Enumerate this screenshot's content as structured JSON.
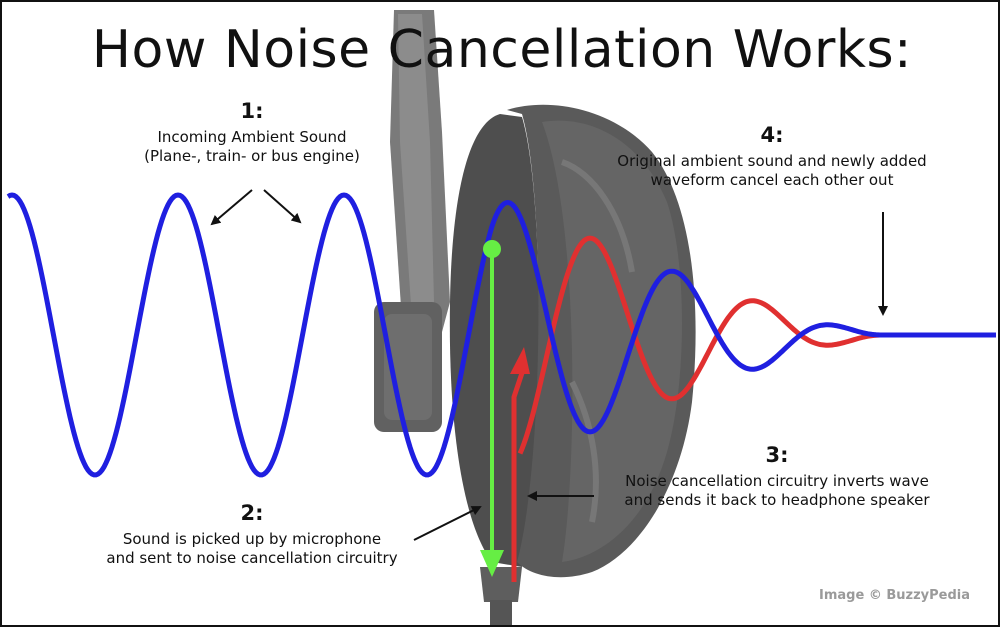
{
  "title": "How Noise Cancellation Works:",
  "steps": [
    {
      "number": "1:",
      "text": "Incoming Ambient Sound\n(Plane-, train- or bus engine)"
    },
    {
      "number": "2:",
      "text": "Sound is picked up by microphone\nand sent to noise cancellation circuitry"
    },
    {
      "number": "3:",
      "text": "Noise cancellation circuitry inverts wave\nand sends it back to headphone speaker"
    },
    {
      "number": "4:",
      "text": "Original ambient sound and newly added\nwaveform cancel each other out"
    }
  ],
  "credit": "Image © BuzzyPedia",
  "colors": {
    "ambient_wave": "#1f1fe0",
    "inverted_wave": "#e03030",
    "microphone_signal": "#66ee44",
    "headphone": "#6e6e6e",
    "arrows": "#111111"
  }
}
